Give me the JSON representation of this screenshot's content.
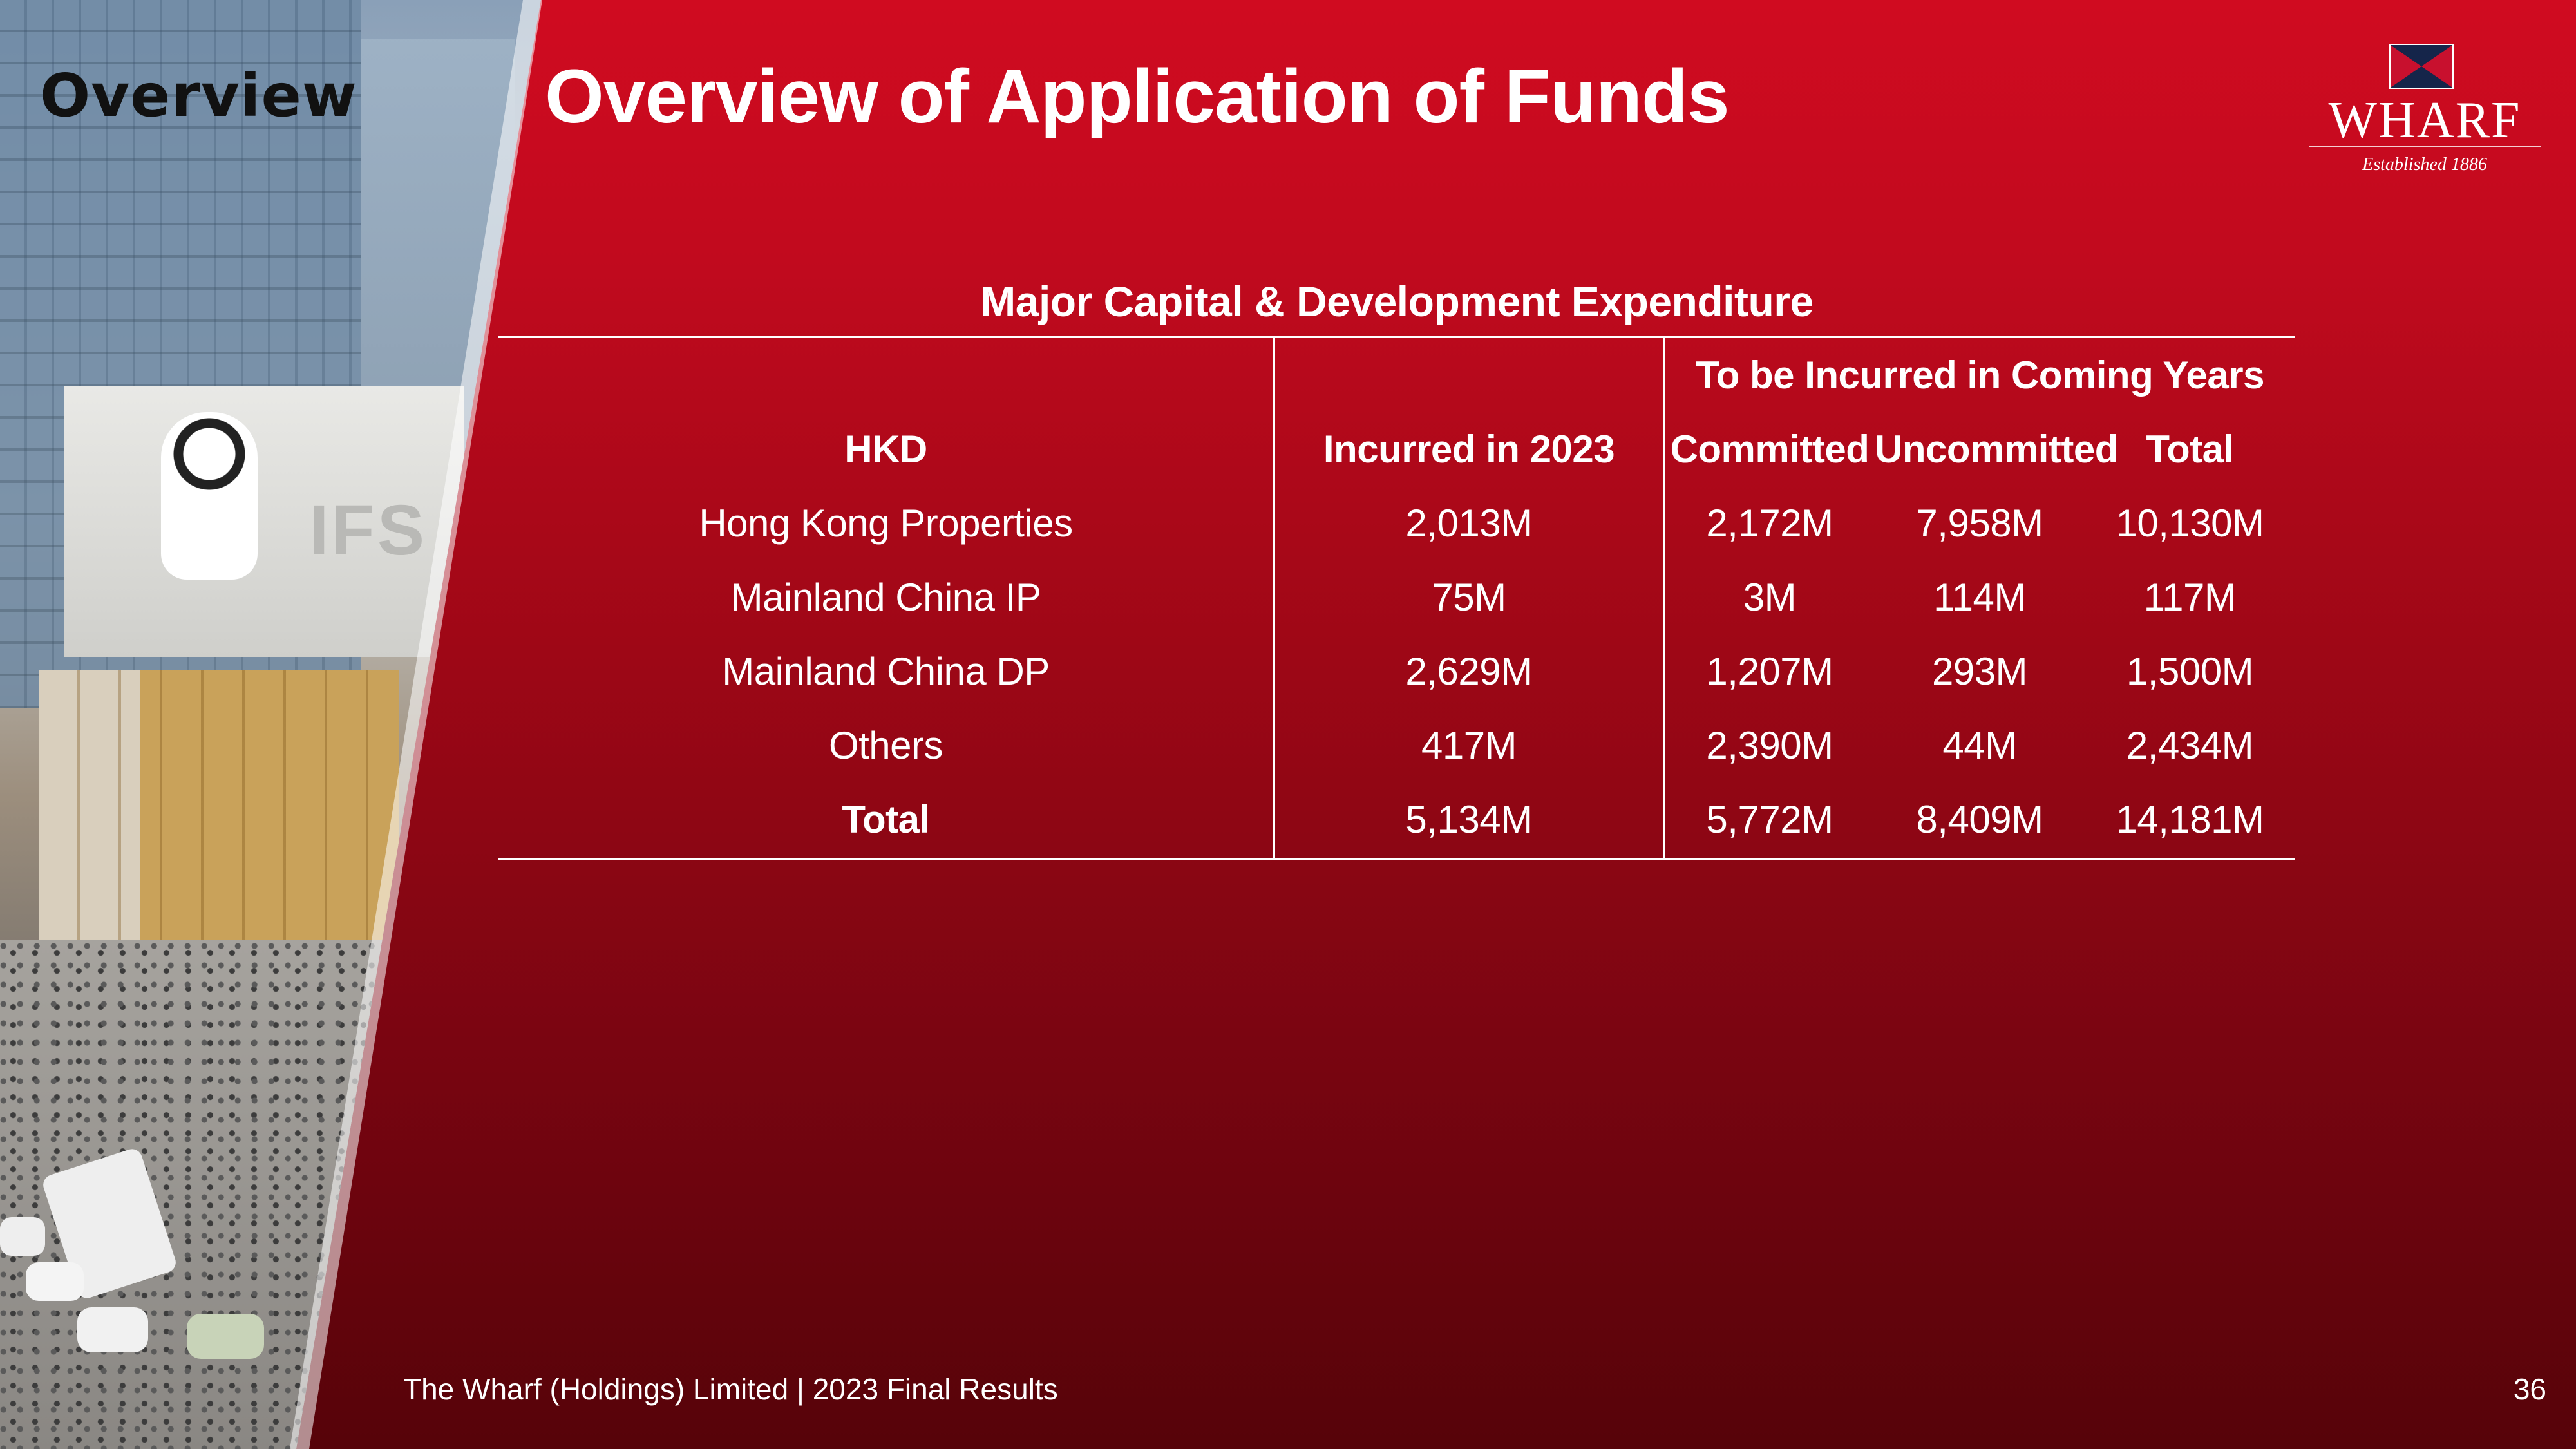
{
  "header": {
    "section_label": "Overview",
    "title": "Overview of Application of Funds"
  },
  "logo": {
    "wordmark": "WHARF",
    "tagline": "Established 1886"
  },
  "table": {
    "caption": "Major Capital & Development Expenditure",
    "group_header": "To be Incurred in Coming Years",
    "columns": [
      "HKD",
      "Incurred in 2023",
      "Committed",
      "Uncommitted",
      "Total"
    ],
    "rows": [
      [
        "Hong Kong Properties",
        "2,013M",
        "2,172M",
        "7,958M",
        "10,130M"
      ],
      [
        "Mainland China IP",
        "75M",
        "3M",
        "114M",
        "117M"
      ],
      [
        "Mainland China DP",
        "2,629M",
        "1,207M",
        "293M",
        "1,500M"
      ],
      [
        "Others",
        "417M",
        "2,390M",
        "44M",
        "2,434M"
      ],
      [
        "Total",
        "5,134M",
        "5,772M",
        "8,409M",
        "14,181M"
      ]
    ]
  },
  "footer": {
    "company": "The Wharf (Holdings) Limited | 2023 Final Results",
    "page_number": "36"
  }
}
